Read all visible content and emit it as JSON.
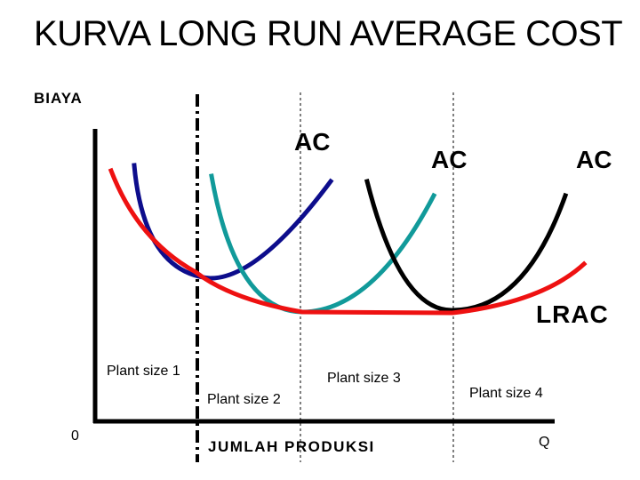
{
  "title": "KURVA LONG RUN AVERAGE COST",
  "axes": {
    "y_label": "BIAYA",
    "x_label": "JUMLAH PRODUKSI",
    "origin_label": "0",
    "q_label": "Q"
  },
  "curves": {
    "ac_labels": [
      "AC",
      "AC",
      "AC"
    ],
    "lrac_label": "LRAC"
  },
  "plants": [
    "Plant size 1",
    "Plant size 2",
    "Plant size 3",
    "Plant size 4"
  ],
  "colors": {
    "lrac": "#ee1111",
    "ac1": "#0d0d8c",
    "ac2": "#119a9a",
    "ac3": "#000000",
    "axis": "#000000"
  }
}
